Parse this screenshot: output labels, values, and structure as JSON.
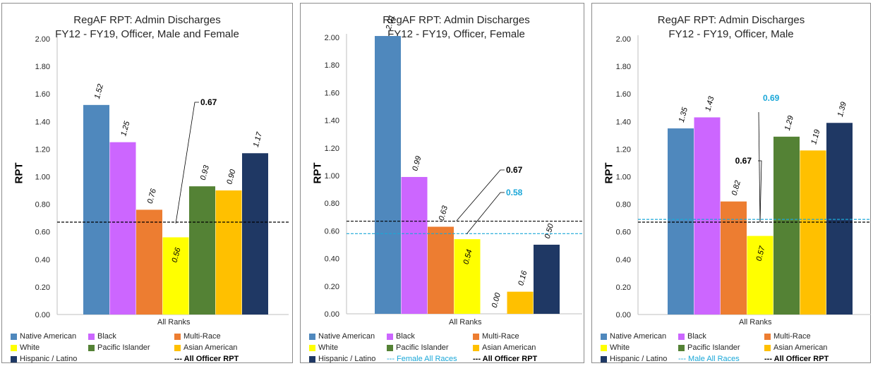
{
  "category_colors": {
    "Native American": "#4f88bd",
    "Black": "#cc66ff",
    "Multi-Race": "#ed7d31",
    "White": "#ffff00",
    "Pacific Islander": "#548235",
    "Asian American": "#ffc000",
    "Hispanic / Latino": "#1f3864"
  },
  "chart_data": [
    {
      "type": "bar",
      "title_lines": [
        "RegAF RPT: Admin Discharges",
        "FY12 - FY19, Officer, Male and Female"
      ],
      "xlabel": "All Ranks",
      "ylabel": "RPT",
      "ylim": [
        0,
        2.0
      ],
      "yticks": [
        "0.00",
        "0.20",
        "0.40",
        "0.60",
        "0.80",
        "1.00",
        "1.20",
        "1.40",
        "1.60",
        "1.80",
        "2.00"
      ],
      "categories": [
        "Native American",
        "Black",
        "Multi-Race",
        "White",
        "Pacific Islander",
        "Asian American",
        "Hispanic / Latino"
      ],
      "values": [
        1.52,
        1.25,
        0.76,
        0.56,
        0.93,
        0.9,
        1.17
      ],
      "value_labels": [
        "1.52",
        "1.25",
        "0.76",
        "0.56",
        "0.93",
        "0.90",
        "1.17"
      ],
      "reference_lines": [
        {
          "name": "All Officer RPT",
          "value": 0.67,
          "label": "0.67",
          "color": "#000000"
        }
      ],
      "legend": {
        "series": [
          "Native American",
          "Black",
          "Multi-Race",
          "White",
          "Pacific Islander",
          "Asian American",
          "Hispanic / Latino"
        ],
        "lines": [
          {
            "text": "--- All Officer RPT",
            "color": "#000000",
            "bold": true
          }
        ]
      }
    },
    {
      "type": "bar",
      "title_lines": [
        "RegAF RPT: Admin Discharges",
        "FY12 - FY19, Officer, Female"
      ],
      "xlabel": "All Ranks",
      "ylabel": "RPT",
      "ylim": [
        0,
        2.0
      ],
      "yticks": [
        "0.00",
        "0.20",
        "0.40",
        "0.60",
        "0.80",
        "1.00",
        "1.20",
        "1.40",
        "1.60",
        "1.80",
        "2.00"
      ],
      "categories": [
        "Native American",
        "Black",
        "Multi-Race",
        "White",
        "Pacific Islander",
        "Asian American",
        "Hispanic / Latino"
      ],
      "values": [
        2.01,
        0.99,
        0.63,
        0.54,
        0.0,
        0.16,
        0.5
      ],
      "value_labels": [
        "2.01",
        "0.99",
        "0.63",
        "0.54",
        "0.00",
        "0.16",
        "0.50"
      ],
      "reference_lines": [
        {
          "name": "All Officer RPT",
          "value": 0.67,
          "label": "0.67",
          "color": "#000000"
        },
        {
          "name": "Female All Races",
          "value": 0.58,
          "label": "0.58",
          "color": "#1aa7d8"
        }
      ],
      "legend": {
        "series": [
          "Native American",
          "Black",
          "Multi-Race",
          "White",
          "Pacific Islander",
          "Asian American",
          "Hispanic / Latino"
        ],
        "lines": [
          {
            "text": "--- Female All Races",
            "color": "#1aa7d8",
            "bold": false
          },
          {
            "text": "--- All Officer RPT",
            "color": "#000000",
            "bold": true
          }
        ]
      }
    },
    {
      "type": "bar",
      "title_lines": [
        "RegAF RPT: Admin Discharges",
        "FY12 - FY19, Officer, Male"
      ],
      "xlabel": "All Ranks",
      "ylabel": "RPT",
      "ylim": [
        0,
        2.0
      ],
      "yticks": [
        "0.00",
        "0.20",
        "0.40",
        "0.60",
        "0.80",
        "1.00",
        "1.20",
        "1.40",
        "1.60",
        "1.80",
        "2.00"
      ],
      "categories": [
        "Native American",
        "Black",
        "Multi-Race",
        "White",
        "Pacific Islander",
        "Asian American",
        "Hispanic / Latino"
      ],
      "values": [
        1.35,
        1.43,
        0.82,
        0.57,
        1.29,
        1.19,
        1.39
      ],
      "value_labels": [
        "1.35",
        "1.43",
        "0.82",
        "0.57",
        "1.29",
        "1.19",
        "1.39"
      ],
      "reference_lines": [
        {
          "name": "All Officer RPT",
          "value": 0.67,
          "label": "0.67",
          "color": "#000000"
        },
        {
          "name": "Male All Races",
          "value": 0.69,
          "label": "0.69",
          "color": "#1aa7d8"
        }
      ],
      "legend": {
        "series": [
          "Native American",
          "Black",
          "Multi-Race",
          "White",
          "Pacific Islander",
          "Asian American",
          "Hispanic / Latino"
        ],
        "lines": [
          {
            "text": "--- Male All Races",
            "color": "#1aa7d8",
            "bold": false
          },
          {
            "text": "--- All Officer RPT",
            "color": "#000000",
            "bold": true
          }
        ]
      }
    }
  ]
}
